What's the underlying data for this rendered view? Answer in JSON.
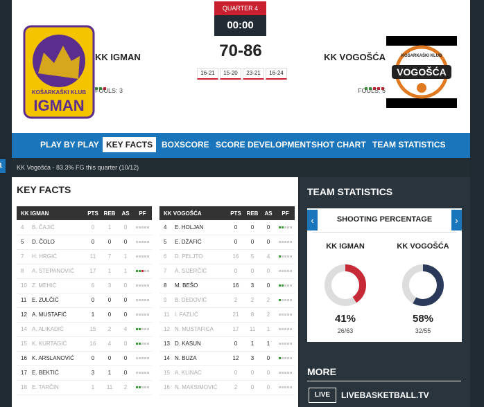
{
  "side_tab": "1",
  "header": {
    "quarter": "QUARTER 4",
    "clock": "00:00",
    "score": "70-86",
    "quarters": [
      "16-21",
      "15-20",
      "23-21",
      "16-24"
    ],
    "home": {
      "name": "KK IGMAN",
      "fouls_label": "FOULS:",
      "fouls": 3,
      "logo_top": "KOŠARKAŠKI KLUB",
      "logo_name": "IGMAN"
    },
    "away": {
      "name": "KK VOGOŠĆA",
      "fouls_label": "FOULS:",
      "fouls": 5,
      "logo_top": "KOŠARKAŠKI KLUB",
      "logo_name": "VOGOŠĆA"
    }
  },
  "nav": {
    "items": [
      "PLAY BY PLAY",
      "KEY FACTS",
      "BOXSCORE",
      "SCORE DEVELOPMENT",
      "SHOT CHART",
      "TEAM STATISTICS"
    ],
    "active": 1
  },
  "ticker": "KK Vogošća - 83.3% FG this quarter (10/12)",
  "key_facts": {
    "title": "KEY FACTS",
    "tables": [
      {
        "columns": [
          "KK IGMAN",
          "PTS",
          "REB",
          "AS",
          "PF"
        ],
        "rows": [
          {
            "no": "4",
            "name": "B. ČAJIĆ",
            "pts": "0",
            "reb": "1",
            "as": "0",
            "pf": 0,
            "on_court": false
          },
          {
            "no": "5",
            "name": "D. ČOLO",
            "pts": "0",
            "reb": "0",
            "as": "0",
            "pf": 0,
            "on_court": true
          },
          {
            "no": "7",
            "name": "H. HRGIĆ",
            "pts": "11",
            "reb": "7",
            "as": "1",
            "pf": 0,
            "on_court": false
          },
          {
            "no": "8",
            "name": "A. STEPANOVIĆ",
            "pts": "17",
            "reb": "1",
            "as": "1",
            "pf": 3,
            "on_court": false
          },
          {
            "no": "10",
            "name": "Z. MEHIĆ",
            "pts": "6",
            "reb": "3",
            "as": "0",
            "pf": 0,
            "on_court": false
          },
          {
            "no": "11",
            "name": "E. ZULČIĆ",
            "pts": "0",
            "reb": "0",
            "as": "0",
            "pf": 0,
            "on_court": true
          },
          {
            "no": "12",
            "name": "A. MUSTAFIĆ",
            "pts": "1",
            "reb": "0",
            "as": "0",
            "pf": 0,
            "on_court": true
          },
          {
            "no": "14",
            "name": "A. ALIKADIĆ",
            "pts": "15",
            "reb": "2",
            "as": "4",
            "pf": 2,
            "on_court": false
          },
          {
            "no": "15",
            "name": "K. KURTAGIĆ",
            "pts": "16",
            "reb": "4",
            "as": "0",
            "pf": 2,
            "on_court": false
          },
          {
            "no": "16",
            "name": "K. ARSLANOVIĆ",
            "pts": "0",
            "reb": "0",
            "as": "0",
            "pf": 0,
            "on_court": true
          },
          {
            "no": "17",
            "name": "E. BEKTIĆ",
            "pts": "3",
            "reb": "1",
            "as": "0",
            "pf": 0,
            "on_court": true
          },
          {
            "no": "18",
            "name": "E. TARČIN",
            "pts": "1",
            "reb": "11",
            "as": "2",
            "pf": 2,
            "on_court": false
          }
        ]
      },
      {
        "columns": [
          "KK VOGOŠĆA",
          "PTS",
          "REB",
          "AS",
          "PF"
        ],
        "rows": [
          {
            "no": "4",
            "name": "E. HOLJAN",
            "pts": "0",
            "reb": "0",
            "as": "0",
            "pf": 2,
            "on_court": true
          },
          {
            "no": "5",
            "name": "E. DŽAFIĆ",
            "pts": "0",
            "reb": "0",
            "as": "0",
            "pf": 0,
            "on_court": true
          },
          {
            "no": "6",
            "name": "D. PELJTO",
            "pts": "16",
            "reb": "5",
            "as": "4",
            "pf": 1,
            "on_court": false
          },
          {
            "no": "7",
            "name": "A. SIJERČIĆ",
            "pts": "0",
            "reb": "0",
            "as": "0",
            "pf": 0,
            "on_court": false
          },
          {
            "no": "8",
            "name": "M. BEŠO",
            "pts": "16",
            "reb": "3",
            "as": "0",
            "pf": 2,
            "on_court": true
          },
          {
            "no": "9",
            "name": "B. DEDOVIĆ",
            "pts": "2",
            "reb": "2",
            "as": "2",
            "pf": 1,
            "on_court": false
          },
          {
            "no": "11",
            "name": "I. FAZLIĆ",
            "pts": "21",
            "reb": "8",
            "as": "2",
            "pf": 0,
            "on_court": false
          },
          {
            "no": "12",
            "name": "N. MUSTAFICA",
            "pts": "17",
            "reb": "11",
            "as": "1",
            "pf": 0,
            "on_court": false
          },
          {
            "no": "13",
            "name": "D. KASUN",
            "pts": "0",
            "reb": "1",
            "as": "1",
            "pf": 0,
            "on_court": true
          },
          {
            "no": "14",
            "name": "N. BUZA",
            "pts": "12",
            "reb": "3",
            "as": "0",
            "pf": 1,
            "on_court": true
          },
          {
            "no": "15",
            "name": "A. KLINAC",
            "pts": "0",
            "reb": "0",
            "as": "0",
            "pf": 0,
            "on_court": false
          },
          {
            "no": "16",
            "name": "N. MAKSIMOVIĆ",
            "pts": "2",
            "reb": "0",
            "as": "0",
            "pf": 0,
            "on_court": false
          }
        ]
      }
    ]
  },
  "team_statistics": {
    "title": "TEAM STATISTICS",
    "card_title": "SHOOTING PERCENTAGE",
    "teams": [
      {
        "name": "KK IGMAN",
        "percent": 41,
        "percent_label": "41%",
        "made": "26/63",
        "color": "#c62a36"
      },
      {
        "name": "KK VOGOŠĆA",
        "percent": 58,
        "percent_label": "58%",
        "made": "32/55",
        "color": "#2b3a5a"
      }
    ]
  },
  "more": {
    "title": "MORE",
    "logo": "LIVE",
    "link": "LIVEBASKETBALL.TV"
  }
}
